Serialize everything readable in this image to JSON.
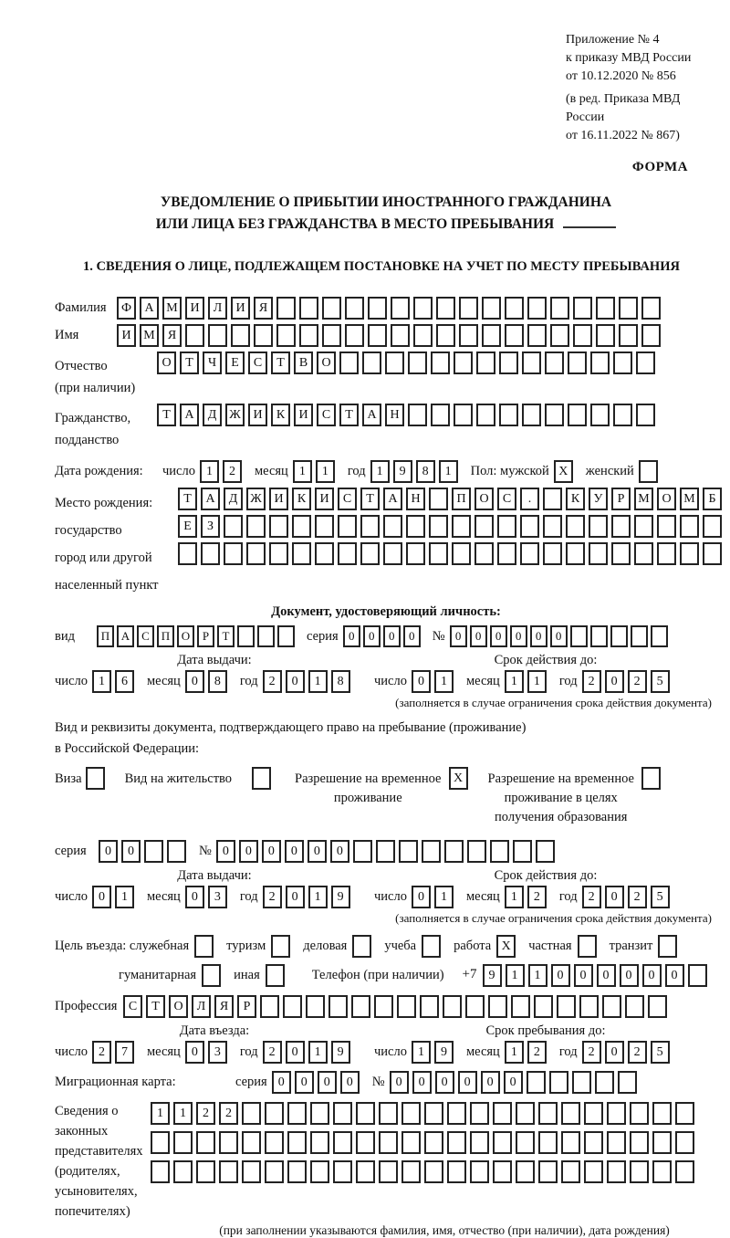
{
  "header": {
    "lines": [
      "Приложение № 4",
      "к приказу МВД России",
      "от 10.12.2020 № 856"
    ],
    "amendment": [
      "(в ред. Приказа МВД России",
      "от 16.11.2022 № 867)"
    ],
    "form_label": "ФОРМА"
  },
  "title": {
    "line1": "УВЕДОМЛЕНИЕ О ПРИБЫТИИ ИНОСТРАННОГО ГРАЖДАНИНА",
    "line2": "ИЛИ ЛИЦА БЕЗ ГРАЖДАНСТВА В МЕСТО ПРЕБЫВАНИЯ"
  },
  "section1_heading": "1. СВЕДЕНИЯ О ЛИЦЕ, ПОДЛЕЖАЩЕМ ПОСТАНОВКЕ НА УЧЕТ ПО МЕСТУ ПРЕБЫВАНИЯ",
  "labels": {
    "day": "число",
    "month": "месяц",
    "year": "год",
    "series": "серия",
    "number": "№",
    "issue_date": "Дата выдачи:",
    "valid_until": "Срок действия до:",
    "restriction_note": "(заполняется в случае ограничения срока действия документа)"
  },
  "surname": {
    "label": "Фамилия",
    "boxes": {
      "value": "ФАМИЛИЯ",
      "count": 24
    }
  },
  "given_name": {
    "label": "Имя",
    "boxes": {
      "value": "ИМЯ",
      "count": 24
    }
  },
  "patronymic": {
    "label": "Отчество",
    "label_note": "(при наличии)",
    "boxes": {
      "value": "ОТЧЕСТВО",
      "count": 22
    }
  },
  "citizenship": {
    "label1": "Гражданство,",
    "label2": "подданство",
    "boxes": {
      "value": "ТАДЖИКИСТАН",
      "count": 22
    }
  },
  "birth_date": {
    "label": "Дата рождения:",
    "day": {
      "value": "12",
      "count": 2
    },
    "month": {
      "value": "11",
      "count": 2
    },
    "year": {
      "value": "1981",
      "count": 4
    }
  },
  "sex": {
    "label_male": "Пол: мужской",
    "male": {
      "value": "X",
      "count": 1
    },
    "label_female": "женский",
    "female": {
      "value": "",
      "count": 1
    }
  },
  "birth_place": {
    "labels": [
      "Место рождения:",
      "государство",
      "город или другой",
      "населенный пункт"
    ],
    "row1": {
      "value": "ТАДЖИКИСТАН ПОС. КУРМОМБ",
      "count": 24
    },
    "row2": {
      "value": "ЕЗ",
      "count": 24
    },
    "row3": {
      "value": "",
      "count": 24
    }
  },
  "identity_doc": {
    "heading": "Документ, удостоверяющий личность:",
    "kind_label": "вид",
    "kind": {
      "value": "ПАСПОРТ",
      "count": 10
    },
    "series": {
      "value": "0000",
      "count": 4
    },
    "number": {
      "value": "000000",
      "count": 11
    },
    "issue": {
      "day": {
        "value": "16",
        "count": 2
      },
      "month": {
        "value": "08",
        "count": 2
      },
      "year": {
        "value": "2018",
        "count": 4
      }
    },
    "valid": {
      "day": {
        "value": "01",
        "count": 2
      },
      "month": {
        "value": "11",
        "count": 2
      },
      "year": {
        "value": "2025",
        "count": 4
      }
    }
  },
  "residence_doc": {
    "intro1": "Вид и реквизиты документа, подтверждающего право на пребывание (проживание)",
    "intro2": "в Российской Федерации:",
    "visa_label": "Виза",
    "visa": {
      "value": "",
      "count": 1
    },
    "residence_permit_label": "Вид на жительство",
    "residence_permit": {
      "value": "",
      "count": 1
    },
    "temp_permit_label1": "Разрешение на временное",
    "temp_permit_label2": "проживание",
    "temp_permit": {
      "value": "X",
      "count": 1
    },
    "edu_permit_label1": "Разрешение на временное",
    "edu_permit_label2": "проживание в целях",
    "edu_permit_label3": "получения образования",
    "edu_permit": {
      "value": "",
      "count": 1
    },
    "series": {
      "value": "00",
      "count": 4
    },
    "number": {
      "value": "000000",
      "count": 15
    },
    "issue": {
      "day": {
        "value": "01",
        "count": 2
      },
      "month": {
        "value": "03",
        "count": 2
      },
      "year": {
        "value": "2019",
        "count": 4
      }
    },
    "valid": {
      "day": {
        "value": "01",
        "count": 2
      },
      "month": {
        "value": "12",
        "count": 2
      },
      "year": {
        "value": "2025",
        "count": 4
      }
    }
  },
  "purpose": {
    "lead_label": "Цель въезда: служебная",
    "official": {
      "value": "",
      "count": 1
    },
    "tourism_label": "туризм",
    "tourism": {
      "value": "",
      "count": 1
    },
    "business_label": "деловая",
    "business": {
      "value": "",
      "count": 1
    },
    "study_label": "учеба",
    "study": {
      "value": "",
      "count": 1
    },
    "work_label": "работа",
    "work": {
      "value": "X",
      "count": 1
    },
    "private_label": "частная",
    "private": {
      "value": "",
      "count": 1
    },
    "transit_label": "транзит",
    "transit": {
      "value": "",
      "count": 1
    },
    "humanitarian_label": "гуманитарная",
    "humanitarian": {
      "value": "",
      "count": 1
    },
    "other_label": "иная",
    "other": {
      "value": "",
      "count": 1
    }
  },
  "phone": {
    "label": "Телефон (при наличии)",
    "prefix": "+7",
    "digits": {
      "value": "911000000",
      "count": 10
    }
  },
  "profession": {
    "label": "Профессия",
    "boxes": {
      "value": "СТОЛЯР",
      "count": 24
    }
  },
  "entry": {
    "date_label": "Дата въезда:",
    "stay_label": "Срок пребывания до:",
    "date": {
      "day": {
        "value": "27",
        "count": 2
      },
      "month": {
        "value": "03",
        "count": 2
      },
      "year": {
        "value": "2019",
        "count": 4
      }
    },
    "stay": {
      "day": {
        "value": "19",
        "count": 2
      },
      "month": {
        "value": "12",
        "count": 2
      },
      "year": {
        "value": "2025",
        "count": 4
      }
    }
  },
  "migration_card": {
    "label": "Миграционная карта:",
    "series": {
      "value": "0000",
      "count": 4
    },
    "number": {
      "value": "000000",
      "count": 11
    }
  },
  "representatives": {
    "labels": [
      "Сведения о",
      "законных",
      "представителях",
      "(родителях,",
      "усыновителях,",
      "попечителях)"
    ],
    "row1": {
      "value": "1122",
      "count": 24
    },
    "row2": {
      "value": "",
      "count": 24
    },
    "row3": {
      "value": "",
      "count": 24
    },
    "note": "(при заполнении указываются фамилия, имя, отчество (при наличии), дата рождения)"
  }
}
